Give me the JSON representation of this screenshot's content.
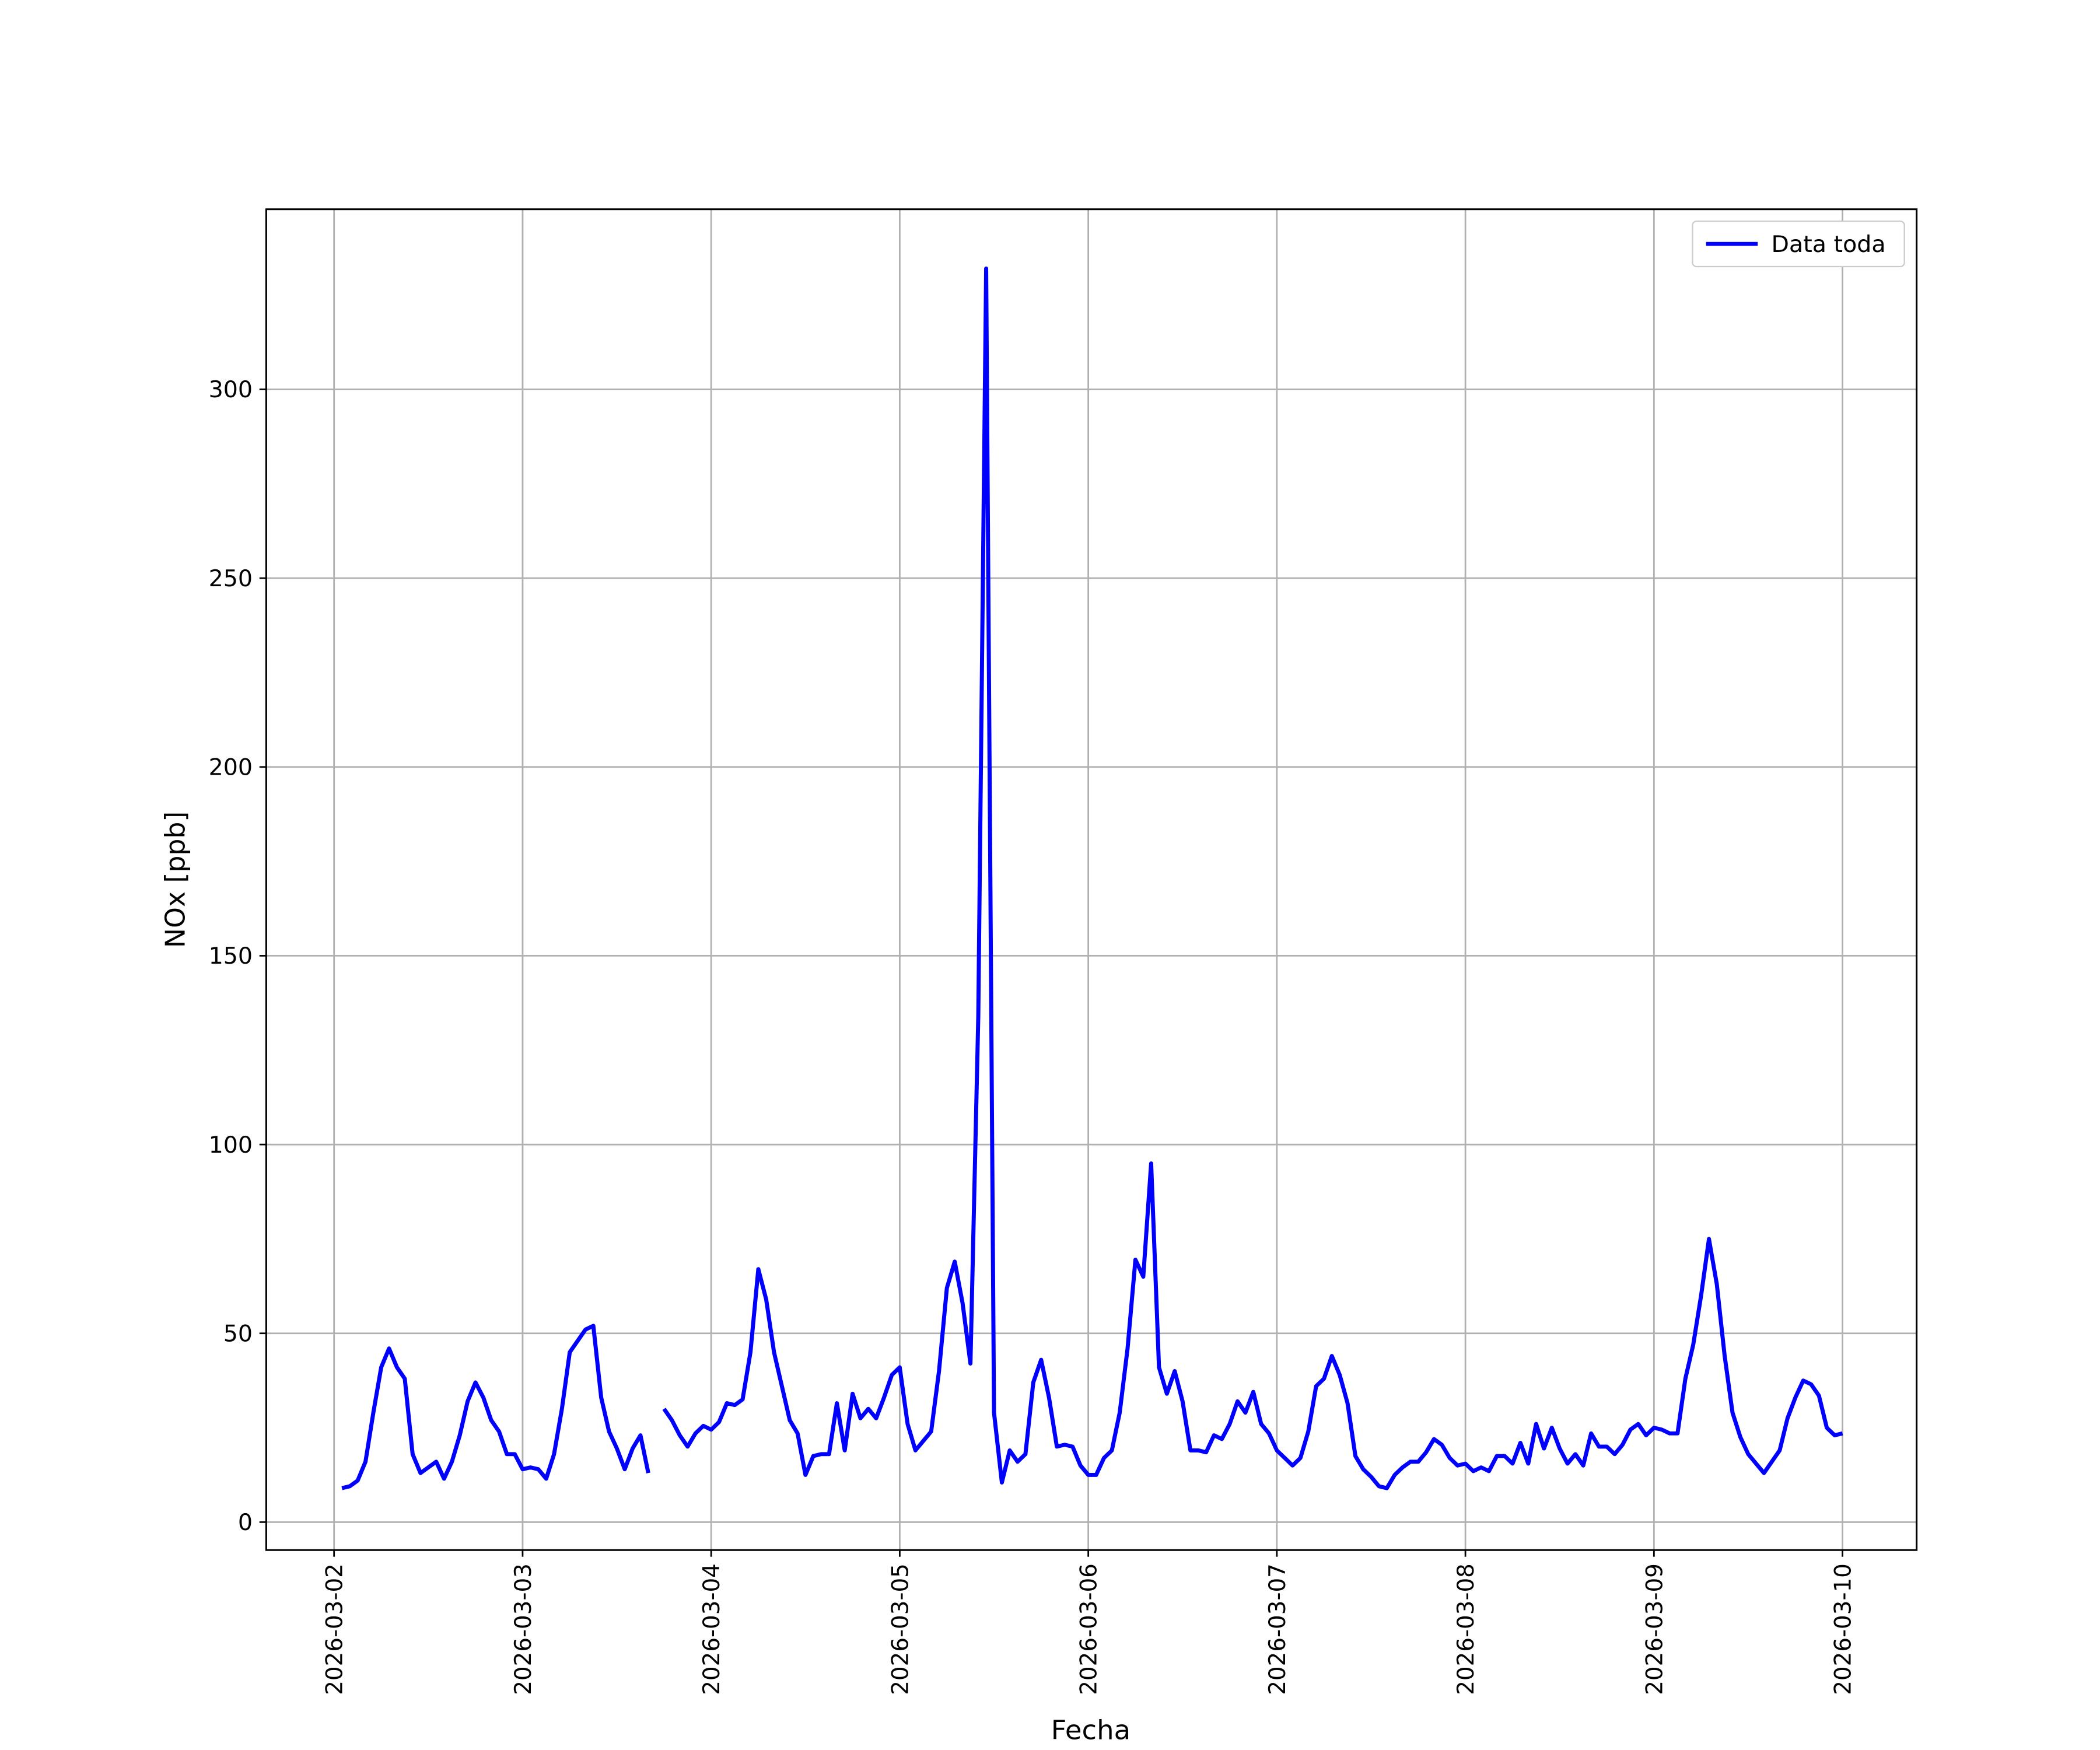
{
  "chart_data": {
    "type": "line",
    "xlabel": "Fecha",
    "ylabel": "NOx [ppb]",
    "x": [
      "2026-03-02 01:00",
      "2026-03-02 02:00",
      "2026-03-02 03:00",
      "2026-03-02 04:00",
      "2026-03-02 05:00",
      "2026-03-02 06:00",
      "2026-03-02 07:00",
      "2026-03-02 08:00",
      "2026-03-02 09:00",
      "2026-03-02 10:00",
      "2026-03-02 11:00",
      "2026-03-02 12:00",
      "2026-03-02 13:00",
      "2026-03-02 14:00",
      "2026-03-02 15:00",
      "2026-03-02 16:00",
      "2026-03-02 17:00",
      "2026-03-02 18:00",
      "2026-03-02 19:00",
      "2026-03-02 20:00",
      "2026-03-02 21:00",
      "2026-03-02 22:00",
      "2026-03-02 23:00",
      "2026-03-03 00:00",
      "2026-03-03 01:00",
      "2026-03-03 02:00",
      "2026-03-03 03:00",
      "2026-03-03 04:00",
      "2026-03-03 05:00",
      "2026-03-03 06:00",
      "2026-03-03 07:00",
      "2026-03-03 08:00",
      "2026-03-03 09:00",
      "2026-03-03 10:00",
      "2026-03-03 11:00",
      "2026-03-03 12:00",
      "2026-03-03 13:00",
      "2026-03-03 14:00",
      "2026-03-03 15:00",
      "2026-03-03 16:00",
      "2026-03-03 17:00",
      "2026-03-03 18:00",
      "2026-03-03 19:00",
      "2026-03-03 20:00",
      "2026-03-03 21:00",
      "2026-03-03 22:00",
      "2026-03-03 23:00",
      "2026-03-04 00:00",
      "2026-03-04 01:00",
      "2026-03-04 02:00",
      "2026-03-04 03:00",
      "2026-03-04 04:00",
      "2026-03-04 05:00",
      "2026-03-04 06:00",
      "2026-03-04 07:00",
      "2026-03-04 08:00",
      "2026-03-04 09:00",
      "2026-03-04 10:00",
      "2026-03-04 11:00",
      "2026-03-04 12:00",
      "2026-03-04 13:00",
      "2026-03-04 14:00",
      "2026-03-04 15:00",
      "2026-03-04 16:00",
      "2026-03-04 17:00",
      "2026-03-04 18:00",
      "2026-03-04 19:00",
      "2026-03-04 20:00",
      "2026-03-04 21:00",
      "2026-03-04 22:00",
      "2026-03-04 23:00",
      "2026-03-05 00:00",
      "2026-03-05 01:00",
      "2026-03-05 02:00",
      "2026-03-05 03:00",
      "2026-03-05 04:00",
      "2026-03-05 05:00",
      "2026-03-05 06:00",
      "2026-03-05 07:00",
      "2026-03-05 08:00",
      "2026-03-05 09:00",
      "2026-03-05 10:00",
      "2026-03-05 11:00",
      "2026-03-05 12:00",
      "2026-03-05 13:00",
      "2026-03-05 14:00",
      "2026-03-05 15:00",
      "2026-03-05 16:00",
      "2026-03-05 17:00",
      "2026-03-05 18:00",
      "2026-03-05 19:00",
      "2026-03-05 20:00",
      "2026-03-05 21:00",
      "2026-03-05 22:00",
      "2026-03-05 23:00",
      "2026-03-06 00:00",
      "2026-03-06 01:00",
      "2026-03-06 02:00",
      "2026-03-06 03:00",
      "2026-03-06 04:00",
      "2026-03-06 05:00",
      "2026-03-06 06:00",
      "2026-03-06 07:00",
      "2026-03-06 08:00",
      "2026-03-06 09:00",
      "2026-03-06 10:00",
      "2026-03-06 11:00",
      "2026-03-06 12:00",
      "2026-03-06 13:00",
      "2026-03-06 14:00",
      "2026-03-06 15:00",
      "2026-03-06 16:00",
      "2026-03-06 17:00",
      "2026-03-06 18:00",
      "2026-03-06 19:00",
      "2026-03-06 20:00",
      "2026-03-06 21:00",
      "2026-03-06 22:00",
      "2026-03-06 23:00",
      "2026-03-07 00:00",
      "2026-03-07 01:00",
      "2026-03-07 02:00",
      "2026-03-07 03:00",
      "2026-03-07 04:00",
      "2026-03-07 05:00",
      "2026-03-07 06:00",
      "2026-03-07 07:00",
      "2026-03-07 08:00",
      "2026-03-07 09:00",
      "2026-03-07 10:00",
      "2026-03-07 11:00",
      "2026-03-07 12:00",
      "2026-03-07 13:00",
      "2026-03-07 14:00",
      "2026-03-07 15:00",
      "2026-03-07 16:00",
      "2026-03-07 17:00",
      "2026-03-07 18:00",
      "2026-03-07 19:00",
      "2026-03-07 20:00",
      "2026-03-07 21:00",
      "2026-03-07 22:00",
      "2026-03-07 23:00",
      "2026-03-08 00:00",
      "2026-03-08 01:00",
      "2026-03-08 02:00",
      "2026-03-08 03:00",
      "2026-03-08 04:00",
      "2026-03-08 05:00",
      "2026-03-08 06:00",
      "2026-03-08 07:00",
      "2026-03-08 08:00",
      "2026-03-08 09:00",
      "2026-03-08 10:00",
      "2026-03-08 11:00",
      "2026-03-08 12:00",
      "2026-03-08 13:00",
      "2026-03-08 14:00",
      "2026-03-08 15:00",
      "2026-03-08 16:00",
      "2026-03-08 17:00",
      "2026-03-08 18:00",
      "2026-03-08 19:00",
      "2026-03-08 20:00",
      "2026-03-08 21:00",
      "2026-03-08 22:00",
      "2026-03-08 23:00",
      "2026-03-09 00:00",
      "2026-03-09 01:00",
      "2026-03-09 02:00",
      "2026-03-09 03:00",
      "2026-03-09 04:00",
      "2026-03-09 05:00",
      "2026-03-09 06:00",
      "2026-03-09 07:00",
      "2026-03-09 08:00",
      "2026-03-09 09:00",
      "2026-03-09 10:00",
      "2026-03-09 11:00",
      "2026-03-09 12:00",
      "2026-03-09 13:00",
      "2026-03-09 14:00",
      "2026-03-09 15:00",
      "2026-03-09 16:00",
      "2026-03-09 17:00",
      "2026-03-09 18:00",
      "2026-03-09 19:00",
      "2026-03-09 20:00",
      "2026-03-09 21:00",
      "2026-03-09 22:00",
      "2026-03-09 23:00",
      "2026-03-10 00:00"
    ],
    "series": [
      {
        "name": "Data toda",
        "color": "#0000ff",
        "values": [
          9,
          9.5,
          11,
          16,
          29,
          41,
          46,
          41,
          38,
          18,
          13,
          14.5,
          16,
          11.5,
          16,
          23,
          32,
          37,
          33,
          27,
          24,
          18,
          18,
          14,
          14.5,
          14,
          11.5,
          18,
          30,
          45,
          48,
          51,
          52,
          33,
          24,
          19.5,
          14,
          19.5,
          23,
          13,
          null,
          30,
          27,
          23,
          20,
          23.5,
          25.5,
          24.5,
          26.5,
          31.5,
          31,
          32.5,
          45,
          67,
          59,
          45,
          36,
          27,
          23.5,
          12.5,
          17.5,
          18,
          18,
          31.5,
          19,
          34,
          27.5,
          30,
          27.5,
          33,
          39,
          41,
          26,
          19,
          21.5,
          24,
          40,
          62,
          69,
          58,
          42,
          134,
          332,
          29,
          10.5,
          19,
          16,
          18,
          37,
          43,
          33,
          20,
          20.5,
          20,
          15,
          12.5,
          12.5,
          17,
          19,
          29,
          46,
          69.5,
          65,
          95,
          41,
          34,
          40,
          32,
          19,
          19,
          18.5,
          23,
          22,
          26,
          32,
          29,
          34.5,
          26,
          23.5,
          19,
          17,
          15,
          17,
          24,
          36,
          38,
          44,
          39,
          31.5,
          17.5,
          14,
          12,
          9.5,
          9,
          12.5,
          14.5,
          16,
          16,
          18.5,
          22,
          20.5,
          17,
          15,
          15.5,
          13.5,
          14.5,
          13.5,
          17.5,
          17.5,
          15.5,
          21,
          15.5,
          26,
          19.5,
          25,
          19.5,
          15.5,
          18,
          15,
          23.5,
          20,
          20,
          18,
          20.5,
          24.5,
          26,
          23,
          25,
          24.5,
          23.5,
          23.5,
          38,
          47,
          60,
          75,
          63,
          44,
          29,
          22.5,
          18,
          15.5,
          13,
          16,
          19,
          27.5,
          33,
          37.5,
          36.5,
          33.5,
          25,
          23,
          23.5
        ]
      }
    ],
    "xlim": [
      "2026-03-01 15:22",
      "2026-03-10 09:26"
    ],
    "xticks": [
      "2026-03-02",
      "2026-03-03",
      "2026-03-04",
      "2026-03-05",
      "2026-03-06",
      "2026-03-07",
      "2026-03-08",
      "2026-03-09",
      "2026-03-10"
    ],
    "ylim": [
      -7.4,
      347.7
    ],
    "yticks": [
      0,
      50,
      100,
      150,
      200,
      250,
      300
    ],
    "grid": true,
    "legend": "upper right"
  }
}
